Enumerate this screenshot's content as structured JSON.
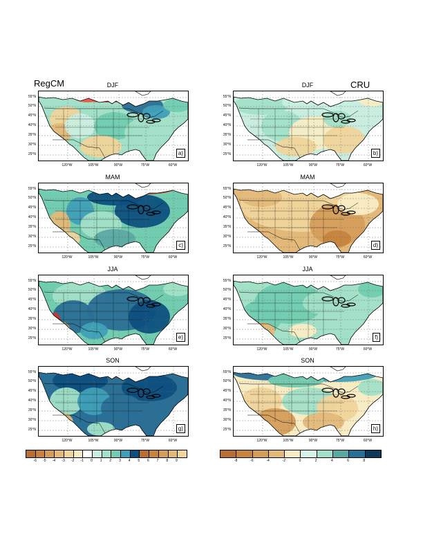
{
  "titles": {
    "left": "RegCM",
    "right": "CRU"
  },
  "seasons": [
    "DJF",
    "MAM",
    "JJA",
    "SON"
  ],
  "panel_labels": [
    "a)",
    "b)",
    "c)",
    "d)",
    "e)",
    "f)",
    "g)",
    "h)"
  ],
  "lat_labels": [
    "55°N",
    "50°N",
    "45°N",
    "40°N",
    "35°N",
    "30°N",
    "25°N"
  ],
  "lon_labels": [
    "120°W",
    "105°W",
    "90°W",
    "75°W",
    "60°W"
  ],
  "colorbar_left": {
    "ticks": [
      "-6",
      "-5",
      "-4",
      "-3",
      "-2",
      "-1",
      "0",
      "1",
      "2",
      "3",
      "4",
      "5",
      "6",
      "7",
      "8",
      "9"
    ],
    "colors": [
      "#b86f35",
      "#c6843f",
      "#d59d5a",
      "#e3b97a",
      "#efd49b",
      "#f8ecc4",
      "#ffffff",
      "#c9eedf",
      "#a2e0c7",
      "#72ccb0",
      "#3f9fb8",
      "#0d4f80",
      "#b86f35",
      "#c6843f",
      "#d59d5a",
      "#e3b97a",
      "#efd49b"
    ]
  },
  "colorbar_right": {
    "ticks": [
      "-8",
      "-6",
      "-4",
      "-2",
      "0",
      "2",
      "4",
      "6",
      "8"
    ],
    "colors": [
      "#b86f35",
      "#c6843f",
      "#d59d5a",
      "#e3b97a",
      "#f8ecc4",
      "#d7f2e6",
      "#a2e0c7",
      "#5ba9a3",
      "#2a6f96",
      "#0b3a5e"
    ]
  }
}
